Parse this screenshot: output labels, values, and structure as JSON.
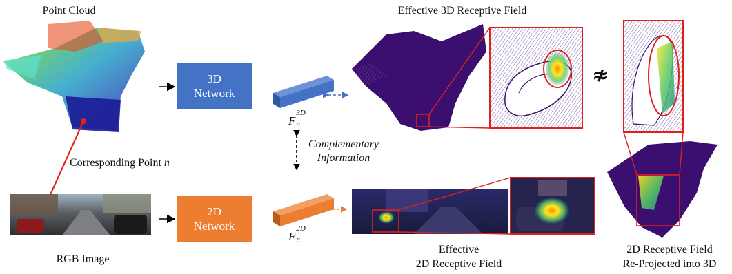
{
  "labels": {
    "point_cloud": "Point Cloud",
    "rgb_image": "RGB Image",
    "corresponding_point": "Corresponding Point",
    "corresponding_point_var": "n",
    "effective_3d": "Effective 3D Receptive Field",
    "effective_2d_line1": "Effective",
    "effective_2d_line2": "2D Receptive Field",
    "reprojected_line1": "2D Receptive Field",
    "reprojected_line2": "Re-Projected into 3D",
    "complementary_line1": "Complementary",
    "complementary_line2": "Information",
    "not_approx": "≉"
  },
  "networks": {
    "net3d": {
      "line1": "3D",
      "line2": "Network",
      "color": "#4472c4"
    },
    "net2d": {
      "line1": "2D",
      "line2": "Network",
      "color": "#ed7d31"
    }
  },
  "features": {
    "f3d": {
      "base": "F",
      "sub": "n",
      "sup": "3D",
      "color": "#4472c4"
    },
    "f2d": {
      "base": "F",
      "sub": "n",
      "sup": "2D",
      "color": "#ed7d31"
    }
  },
  "colors": {
    "highlight": "#e0201b",
    "pointcloud": "#3b0f70",
    "arrow": "#000000"
  }
}
